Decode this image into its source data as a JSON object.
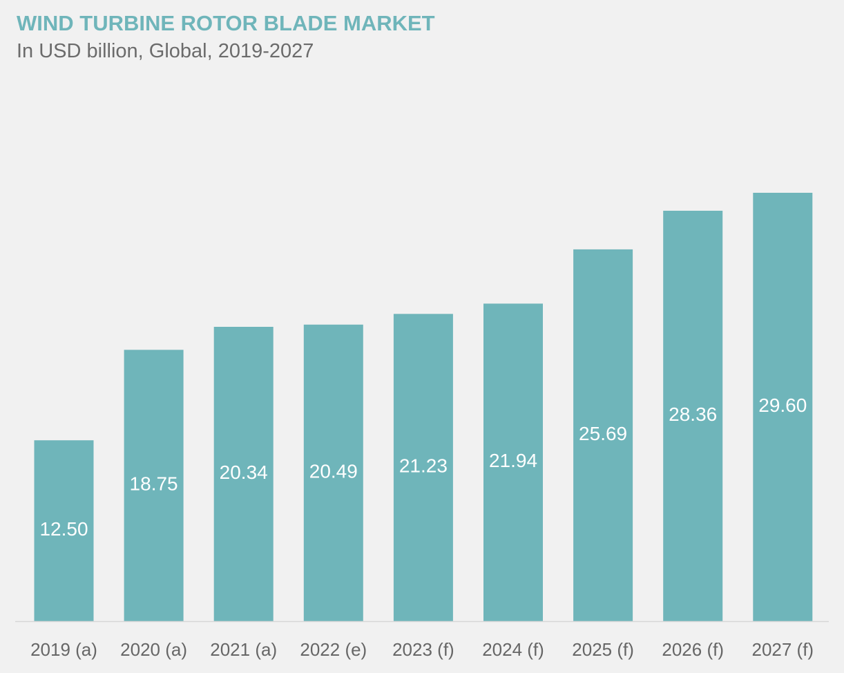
{
  "title": "WIND TURBINE ROTOR BLADE MARKET",
  "subtitle": "In USD billion, Global, 2019-2027",
  "colors": {
    "bar": "#6fb5ba",
    "title": "#6fb5ba",
    "subtitle": "#6b6b6b",
    "axis": "#d7d7d7",
    "tick_text": "#666666",
    "value_text": "#ffffff",
    "background": "#f1f1f1"
  },
  "chart_data": {
    "type": "bar",
    "title": "WIND TURBINE ROTOR BLADE MARKET",
    "subtitle": "In USD billion, Global, 2019-2027",
    "categories": [
      "2019 (a)",
      "2020 (a)",
      "2021 (a)",
      "2022 (e)",
      "2023 (f)",
      "2024 (f)",
      "2025 (f)",
      "2026 (f)",
      "2027 (f)"
    ],
    "values": [
      12.5,
      18.75,
      20.34,
      20.49,
      21.23,
      21.94,
      25.69,
      28.36,
      29.6
    ],
    "value_labels": [
      "12.50",
      "18.75",
      "20.34",
      "20.49",
      "21.23",
      "21.94",
      "25.69",
      "28.36",
      "29.60"
    ],
    "xlabel": "",
    "ylabel": "",
    "ylim": [
      0,
      30
    ],
    "grid": false,
    "legend": "none",
    "data_labels": "inside-bar"
  }
}
